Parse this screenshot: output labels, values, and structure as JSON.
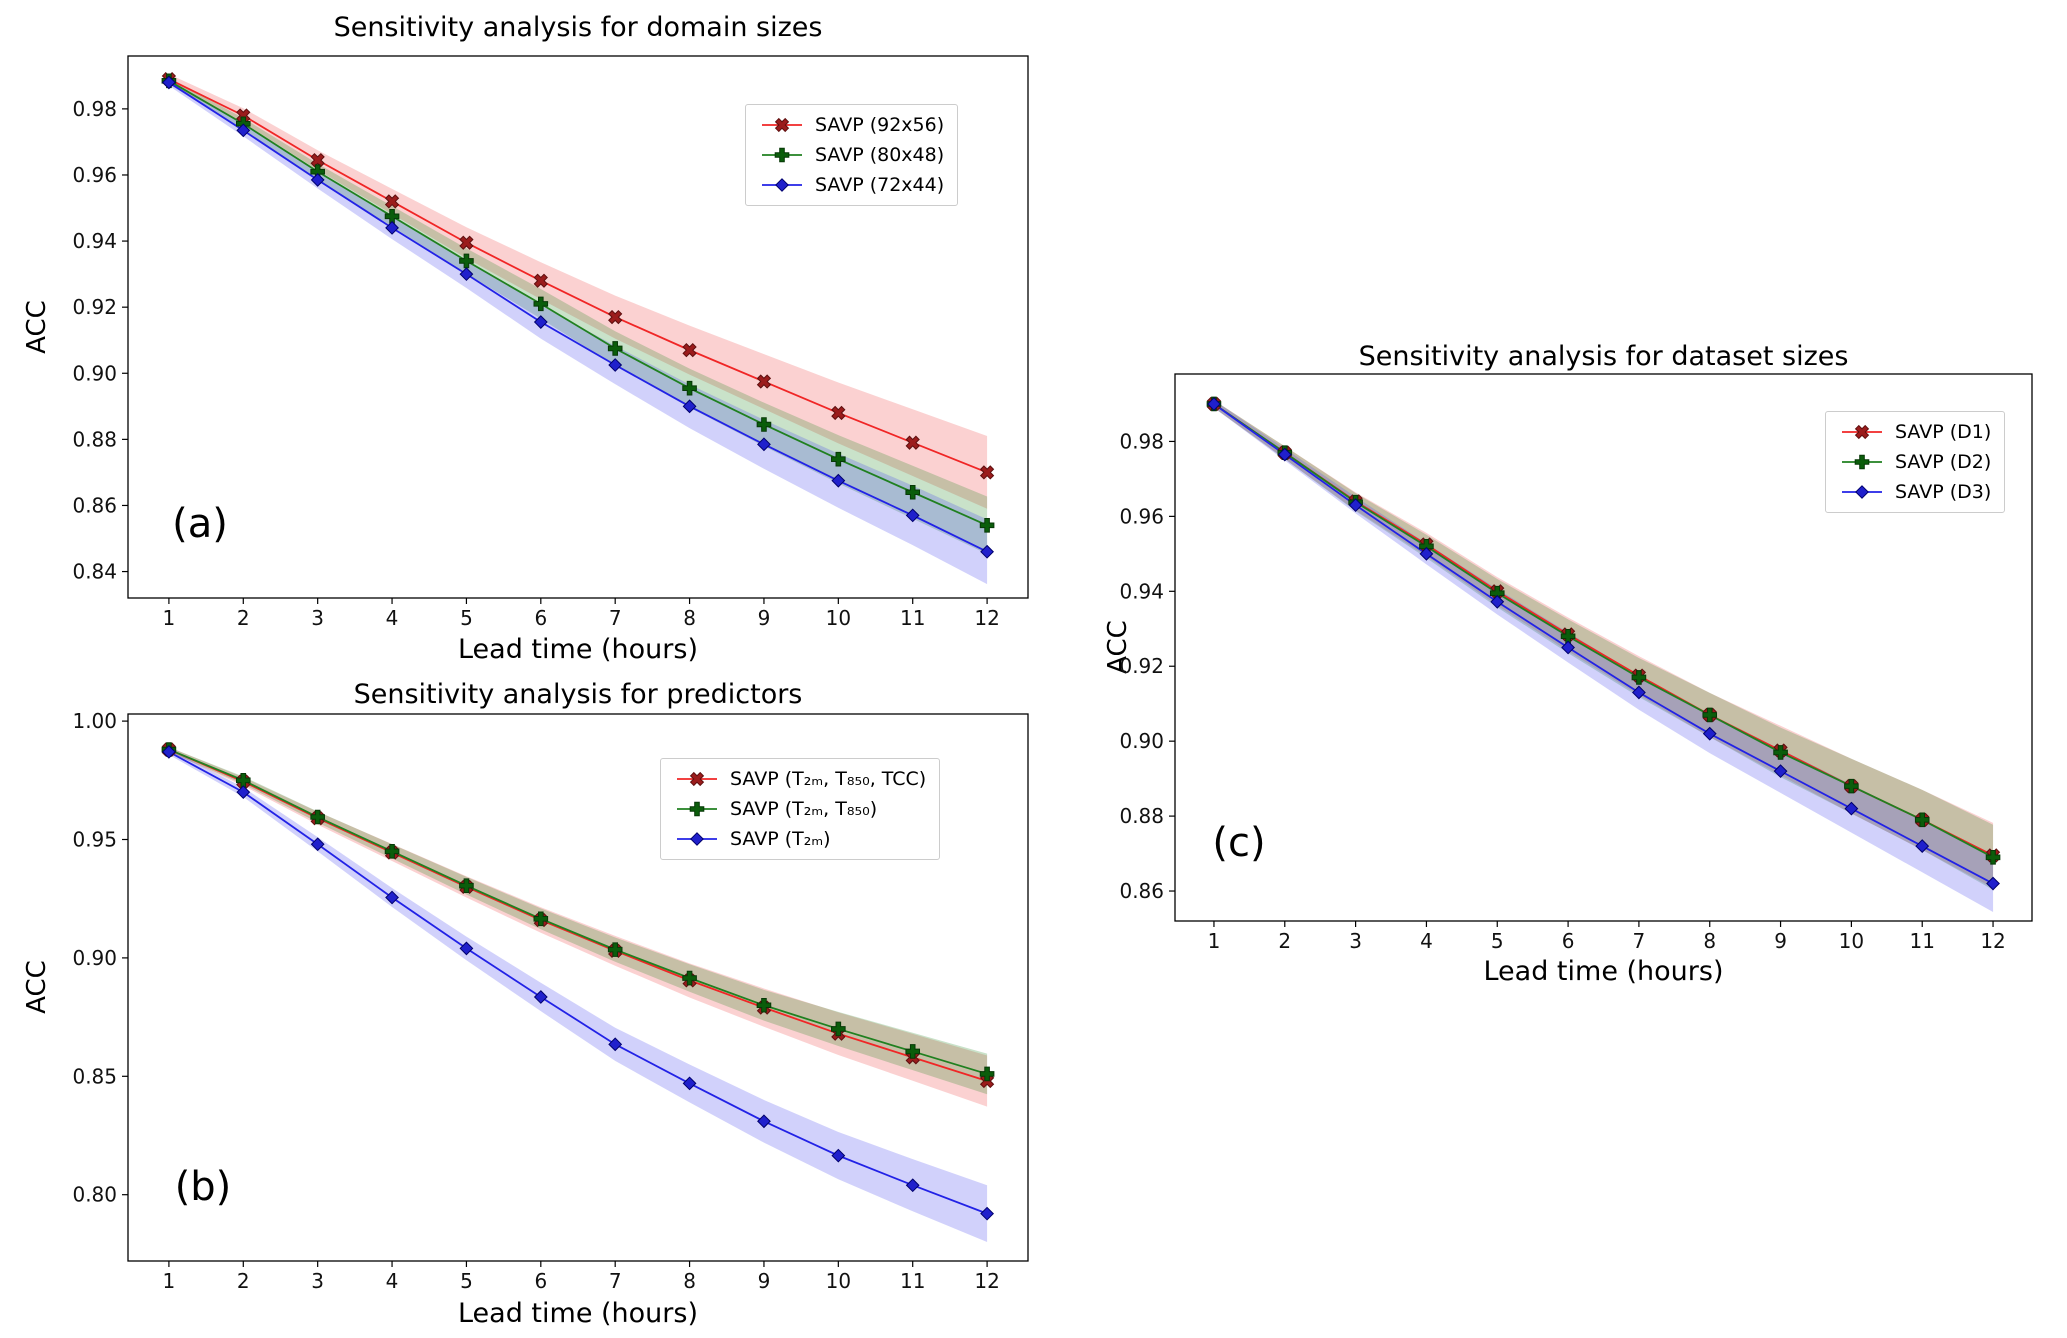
{
  "figure": {
    "background": "#ffffff"
  },
  "chart_data": [
    {
      "id": "a",
      "type": "line",
      "corner_label": "(a)",
      "title": "Sensitivity analysis for domain sizes",
      "xlabel": "Lead time (hours)",
      "ylabel": "ACC",
      "x": [
        1,
        2,
        3,
        4,
        5,
        6,
        7,
        8,
        9,
        10,
        11,
        12
      ],
      "xlim": [
        0.45,
        12.55
      ],
      "ylim": [
        0.832,
        0.996
      ],
      "yticks": [
        0.84,
        0.86,
        0.88,
        0.9,
        0.92,
        0.94,
        0.96,
        0.98
      ],
      "grid": false,
      "legend_position": "upper right",
      "series": [
        {
          "name": "SAVP (92x56)",
          "marker": "x",
          "line_color": "#f02626",
          "marker_fill": "#9b1c1c",
          "marker_edge": "#5e0f0f",
          "band_color": "rgba(240,70,70,0.25)",
          "values": [
            0.989,
            0.978,
            0.9645,
            0.952,
            0.9395,
            0.928,
            0.917,
            0.907,
            0.8975,
            0.888,
            0.879,
            0.87
          ],
          "band": [
            0.0015,
            0.0022,
            0.003,
            0.0038,
            0.0047,
            0.0056,
            0.0065,
            0.0074,
            0.0083,
            0.0092,
            0.0101,
            0.011
          ]
        },
        {
          "name": "SAVP (80x48)",
          "marker": "plus",
          "line_color": "#208020",
          "marker_fill": "#0b5d0b",
          "marker_edge": "#073807",
          "band_color": "rgba(40,140,40,0.25)",
          "values": [
            0.9885,
            0.9755,
            0.961,
            0.9475,
            0.934,
            0.921,
            0.9075,
            0.8955,
            0.8845,
            0.874,
            0.864,
            0.854
          ],
          "band": [
            0.001,
            0.0017,
            0.0024,
            0.0031,
            0.0038,
            0.0045,
            0.0052,
            0.0059,
            0.0066,
            0.0073,
            0.008,
            0.0087
          ]
        },
        {
          "name": "SAVP (72x44)",
          "marker": "diamond",
          "line_color": "#2222e6",
          "marker_fill": "#2020cc",
          "marker_edge": "#00006b",
          "band_color": "rgba(70,70,240,0.25)",
          "values": [
            0.988,
            0.9735,
            0.9585,
            0.944,
            0.93,
            0.9155,
            0.9025,
            0.89,
            0.8785,
            0.8675,
            0.857,
            0.846
          ],
          "band": [
            0.001,
            0.0018,
            0.0026,
            0.0034,
            0.0042,
            0.005,
            0.0058,
            0.0066,
            0.0074,
            0.0082,
            0.009,
            0.0098
          ]
        }
      ]
    },
    {
      "id": "b",
      "type": "line",
      "corner_label": "(b)",
      "title": "Sensitivity analysis for predictors",
      "xlabel": "Lead time (hours)",
      "ylabel": "ACC",
      "x": [
        1,
        2,
        3,
        4,
        5,
        6,
        7,
        8,
        9,
        10,
        11,
        12
      ],
      "xlim": [
        0.45,
        12.55
      ],
      "ylim": [
        0.772,
        1.003
      ],
      "yticks": [
        0.8,
        0.85,
        0.9,
        0.95,
        1.0
      ],
      "grid": false,
      "legend_position": "upper right",
      "series": [
        {
          "name": "SAVP (T₂ₘ, T₈₅₀, TCC)",
          "marker": "x",
          "line_color": "#f02626",
          "marker_fill": "#9b1c1c",
          "marker_edge": "#5e0f0f",
          "band_color": "rgba(240,70,70,0.25)",
          "values": [
            0.988,
            0.9745,
            0.959,
            0.9445,
            0.93,
            0.916,
            0.903,
            0.8905,
            0.879,
            0.868,
            0.858,
            0.848
          ],
          "band": [
            0.001,
            0.0018,
            0.0027,
            0.0036,
            0.0045,
            0.0054,
            0.0063,
            0.0072,
            0.0081,
            0.009,
            0.0099,
            0.0108
          ]
        },
        {
          "name": "SAVP (T₂ₘ, T₈₅₀)",
          "marker": "plus",
          "line_color": "#208020",
          "marker_fill": "#0b5d0b",
          "marker_edge": "#073807",
          "band_color": "rgba(40,140,40,0.25)",
          "values": [
            0.988,
            0.975,
            0.9595,
            0.945,
            0.9305,
            0.9165,
            0.9035,
            0.8915,
            0.88,
            0.87,
            0.8605,
            0.851
          ],
          "band": [
            0.001,
            0.0016,
            0.0023,
            0.003,
            0.0037,
            0.0044,
            0.0051,
            0.0058,
            0.0065,
            0.0072,
            0.0079,
            0.0086
          ]
        },
        {
          "name": "SAVP (T₂ₘ)",
          "marker": "diamond",
          "line_color": "#2222e6",
          "marker_fill": "#2020cc",
          "marker_edge": "#00006b",
          "band_color": "rgba(70,70,240,0.25)",
          "values": [
            0.987,
            0.97,
            0.948,
            0.9255,
            0.904,
            0.8835,
            0.8635,
            0.847,
            0.831,
            0.8165,
            0.804,
            0.792
          ],
          "band": [
            0.0012,
            0.002,
            0.003,
            0.004,
            0.005,
            0.006,
            0.007,
            0.008,
            0.009,
            0.01,
            0.011,
            0.012
          ]
        }
      ]
    },
    {
      "id": "c",
      "type": "line",
      "corner_label": "(c)",
      "title": "Sensitivity analysis for dataset sizes",
      "xlabel": "Lead time (hours)",
      "ylabel": "ACC",
      "x": [
        1,
        2,
        3,
        4,
        5,
        6,
        7,
        8,
        9,
        10,
        11,
        12
      ],
      "xlim": [
        0.45,
        12.55
      ],
      "ylim": [
        0.852,
        0.998
      ],
      "yticks": [
        0.86,
        0.88,
        0.9,
        0.92,
        0.94,
        0.96,
        0.98
      ],
      "grid": false,
      "legend_position": "upper right",
      "series": [
        {
          "name": "SAVP (D1)",
          "marker": "x",
          "line_color": "#f02626",
          "marker_fill": "#9b1c1c",
          "marker_edge": "#5e0f0f",
          "band_color": "rgba(240,70,70,0.25)",
          "values": [
            0.99,
            0.977,
            0.964,
            0.9525,
            0.94,
            0.9285,
            0.9175,
            0.907,
            0.8975,
            0.888,
            0.879,
            0.8695
          ],
          "band": [
            0.001,
            0.0017,
            0.0024,
            0.0031,
            0.0038,
            0.0045,
            0.0052,
            0.0059,
            0.0066,
            0.0073,
            0.008,
            0.0087
          ]
        },
        {
          "name": "SAVP (D2)",
          "marker": "plus",
          "line_color": "#208020",
          "marker_fill": "#0b5d0b",
          "marker_edge": "#073807",
          "band_color": "rgba(40,140,40,0.25)",
          "values": [
            0.99,
            0.977,
            0.9638,
            0.952,
            0.9395,
            0.928,
            0.917,
            0.907,
            0.897,
            0.888,
            0.879,
            0.869
          ],
          "band": [
            0.001,
            0.0017,
            0.0024,
            0.0031,
            0.0038,
            0.0045,
            0.0052,
            0.0059,
            0.0066,
            0.0073,
            0.008,
            0.0087
          ]
        },
        {
          "name": "SAVP (D3)",
          "marker": "diamond",
          "line_color": "#2222e6",
          "marker_fill": "#2020cc",
          "marker_edge": "#00006b",
          "band_color": "rgba(70,70,240,0.25)",
          "values": [
            0.99,
            0.9765,
            0.963,
            0.95,
            0.9372,
            0.925,
            0.913,
            0.902,
            0.892,
            0.882,
            0.872,
            0.862
          ],
          "band": [
            0.001,
            0.0016,
            0.0022,
            0.0028,
            0.0034,
            0.004,
            0.0046,
            0.0052,
            0.0058,
            0.0064,
            0.007,
            0.0076
          ]
        }
      ]
    }
  ]
}
